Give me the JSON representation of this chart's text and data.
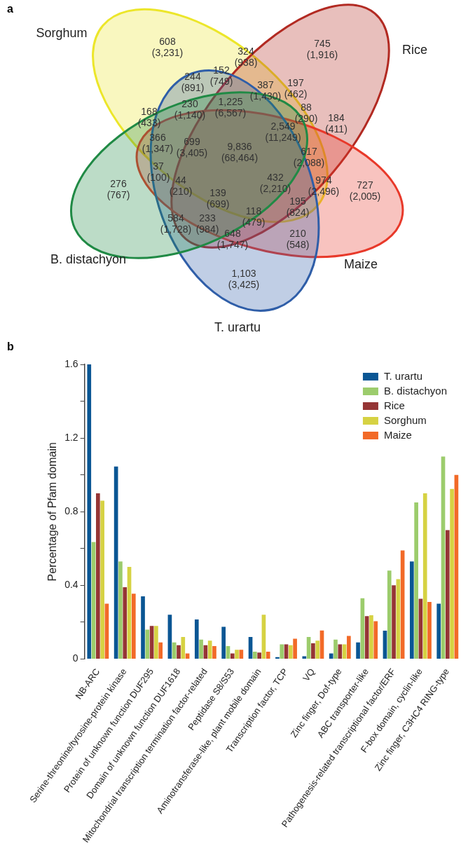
{
  "chart_data": [
    {
      "type": "other",
      "title": "a",
      "categories": [
        "Sorghum",
        "Rice",
        "Maize",
        "T. urartu",
        "B. distachyon"
      ],
      "colors": [
        "#ece62a",
        "#b22a22",
        "#e8392a",
        "#2f5ea8",
        "#208a45"
      ],
      "annotations": [
        "608\n(3,231)",
        "745\n(1,916)",
        "324\n(938)",
        "152\n(749)",
        "244\n(891)",
        "387\n(1,430)",
        "197\n(462)",
        "230\n(1,140)",
        "1,225\n(6,567)",
        "168\n(433)",
        "88\n(290)",
        "184\n(411)",
        "2,549\n(11,249)",
        "366\n(1,347)",
        "699\n(3,405)",
        "9,836\n(68,464)",
        "617\n(2,088)",
        "276\n(767)",
        "37\n(100)",
        "44\n(210)",
        "432\n(2,210)",
        "974\n(2,496)",
        "727\n(2,005)",
        "139\n(699)",
        "195\n(824)",
        "584\n(1,728)",
        "233\n(984)",
        "118\n(479)",
        "648\n(1,747)",
        "210\n(548)",
        "1,103\n(3,425)"
      ]
    },
    {
      "type": "bar",
      "title": "b",
      "ylabel": "Percentage of Pfam domain",
      "categories": [
        "NB-ARC",
        "Serine-threonine/tyrosine-protein kinase",
        "Protein of unknown function DUF295",
        "Domain of unknown function DUF1618",
        "Mitochondrial transcription termination factor-related",
        "Peptidase S8/S53",
        "Aminotransferase-like, plant mobile domain",
        "Transcription factor, TCP",
        "VQ",
        "Zinc finger, Dof-type",
        "ABC transporter-like",
        "Pathogenesis-related transcriptional factor/ERF",
        "F-box domain, cyclin-like",
        "Zinc finger, C3HC4 RING-type"
      ],
      "series": [
        {
          "name": "T. urartu",
          "color": "#0a5694",
          "values": [
            1.6,
            1.045,
            0.34,
            0.24,
            0.215,
            0.175,
            0.12,
            0.01,
            0.015,
            0.03,
            0.09,
            0.154,
            0.53,
            0.3
          ]
        },
        {
          "name": "B. distachyon",
          "color": "#9ccc6c",
          "values": [
            0.635,
            0.53,
            0.16,
            0.09,
            0.105,
            0.07,
            0.04,
            0.08,
            0.12,
            0.105,
            0.33,
            0.48,
            0.85,
            1.1
          ]
        },
        {
          "name": "Rice",
          "color": "#953535",
          "values": [
            0.9,
            0.39,
            0.18,
            0.075,
            0.075,
            0.03,
            0.035,
            0.08,
            0.085,
            0.08,
            0.233,
            0.4,
            0.327,
            0.7
          ]
        },
        {
          "name": "Sorghum",
          "color": "#d6d243",
          "values": [
            0.86,
            0.5,
            0.18,
            0.12,
            0.1,
            0.05,
            0.24,
            0.075,
            0.1,
            0.08,
            0.238,
            0.434,
            0.9,
            0.924
          ]
        },
        {
          "name": "Maize",
          "color": "#f26a28",
          "values": [
            0.3,
            0.355,
            0.09,
            0.03,
            0.07,
            0.05,
            0.04,
            0.11,
            0.155,
            0.125,
            0.205,
            0.59,
            0.31,
            1.0
          ]
        }
      ],
      "ylim": [
        0,
        1.6
      ],
      "yticks": [
        0,
        {
          "value": 0.2,
          "label": null
        },
        0.4,
        {
          "value": 0.6,
          "label": null
        },
        0.8,
        {
          "value": 1.0,
          "label": null
        },
        1.2,
        {
          "value": 1.4,
          "label": null
        },
        1.6
      ],
      "grid": false,
      "legend": "top right"
    }
  ]
}
